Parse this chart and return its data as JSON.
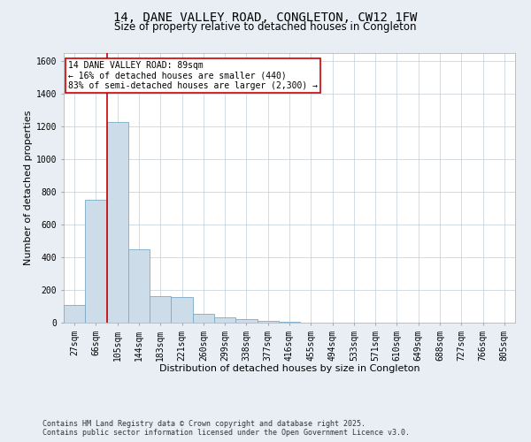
{
  "title": "14, DANE VALLEY ROAD, CONGLETON, CW12 1FW",
  "subtitle": "Size of property relative to detached houses in Congleton",
  "xlabel": "Distribution of detached houses by size in Congleton",
  "ylabel": "Number of detached properties",
  "categories": [
    "27sqm",
    "66sqm",
    "105sqm",
    "144sqm",
    "183sqm",
    "221sqm",
    "260sqm",
    "299sqm",
    "338sqm",
    "377sqm",
    "416sqm",
    "455sqm",
    "494sqm",
    "533sqm",
    "571sqm",
    "610sqm",
    "649sqm",
    "688sqm",
    "727sqm",
    "766sqm",
    "805sqm"
  ],
  "values": [
    110,
    750,
    1230,
    450,
    160,
    155,
    55,
    30,
    20,
    10,
    5,
    0,
    0,
    0,
    0,
    0,
    0,
    0,
    0,
    0,
    0
  ],
  "bar_color": "#ccdce8",
  "bar_edge_color": "#7aaac8",
  "vline_x_index": 1.5,
  "vline_color": "#cc0000",
  "ylim": [
    0,
    1650
  ],
  "yticks": [
    0,
    200,
    400,
    600,
    800,
    1000,
    1200,
    1400,
    1600
  ],
  "annotation_text": "14 DANE VALLEY ROAD: 89sqm\n← 16% of detached houses are smaller (440)\n83% of semi-detached houses are larger (2,300) →",
  "annotation_box_color": "#cc0000",
  "footer_line1": "Contains HM Land Registry data © Crown copyright and database right 2025.",
  "footer_line2": "Contains public sector information licensed under the Open Government Licence v3.0.",
  "bg_color": "#e8eef4",
  "plot_bg_color": "#ffffff",
  "grid_color": "#c0cdd8",
  "title_fontsize": 10,
  "subtitle_fontsize": 8.5,
  "xlabel_fontsize": 8,
  "ylabel_fontsize": 8,
  "tick_fontsize": 7,
  "footer_fontsize": 6,
  "annot_fontsize": 7
}
